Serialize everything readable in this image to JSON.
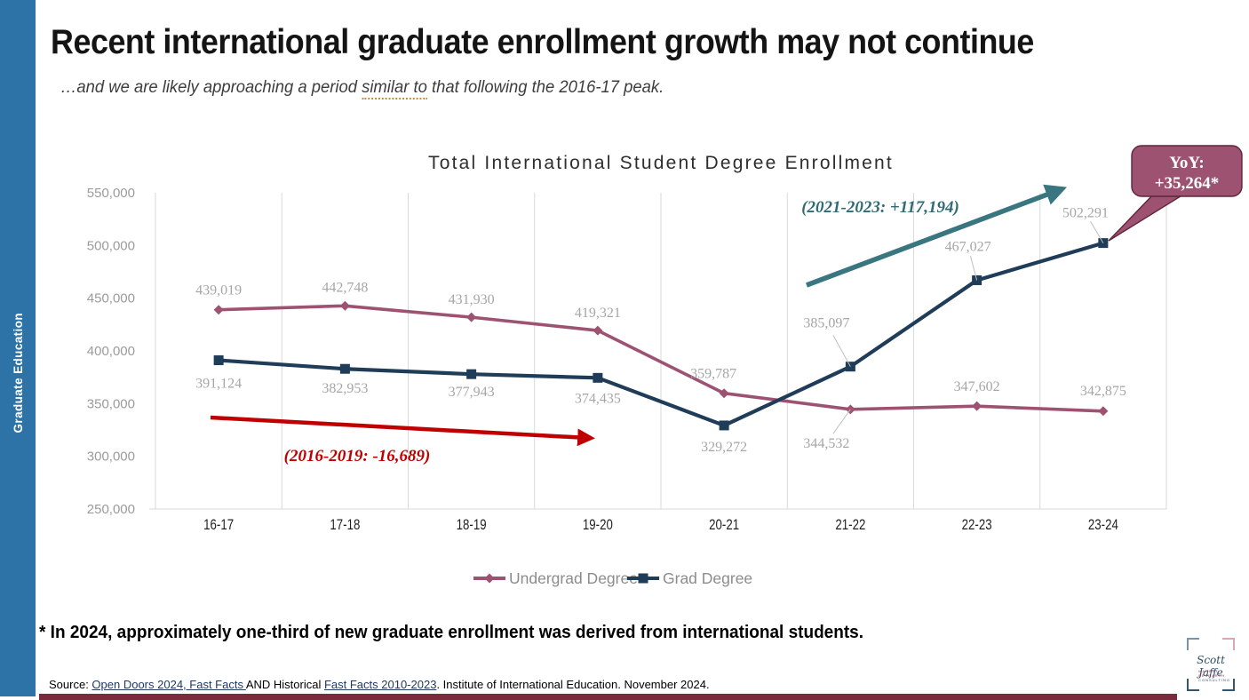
{
  "sidebar": {
    "label": "Graduate Education"
  },
  "header": {
    "title": "Recent international graduate enrollment growth may not continue",
    "subtitle_prefix": "…and we are likely approaching a period ",
    "subtitle_marked": "similar to",
    "subtitle_suffix": " that following the 2016-17 peak."
  },
  "chart_data": {
    "type": "line",
    "title": "Total International Student Degree Enrollment",
    "categories": [
      "16-17",
      "17-18",
      "18-19",
      "19-20",
      "20-21",
      "21-22",
      "22-23",
      "23-24"
    ],
    "series": [
      {
        "name": "Undergrad Degree",
        "color": "#9E5271",
        "marker": "diamond",
        "values": [
          439019,
          442748,
          431930,
          419321,
          359787,
          344532,
          347602,
          342875
        ],
        "label_offsets": [
          [
            0,
            -22,
            0
          ],
          [
            0,
            -21,
            0
          ],
          [
            0,
            -20,
            0
          ],
          [
            0,
            -20,
            0
          ],
          [
            -12,
            -22,
            0
          ],
          [
            -27,
            38,
            1
          ],
          [
            0,
            -22,
            0
          ],
          [
            0,
            -23,
            0
          ]
        ]
      },
      {
        "name": "Grad Degree",
        "color": "#1F3D58",
        "marker": "square",
        "values": [
          391124,
          382953,
          377943,
          374435,
          329272,
          385097,
          467027,
          502291
        ],
        "label_offsets": [
          [
            0,
            26,
            0
          ],
          [
            0,
            22,
            0
          ],
          [
            0,
            20,
            0
          ],
          [
            0,
            23,
            0
          ],
          [
            0,
            24,
            0
          ],
          [
            -27,
            -49,
            1
          ],
          [
            -10,
            -38,
            1
          ],
          [
            -20,
            -34,
            1
          ]
        ]
      }
    ],
    "ylim": [
      250000,
      550000
    ],
    "ytick_step": 50000,
    "ytick_format": "comma",
    "grid": "vertical-only",
    "legend_position": "bottom",
    "annotations": {
      "decline_arrow": {
        "text": "(2016-2019: -16,689)",
        "color": "#C00000"
      },
      "growth_arrow": {
        "text": "(2021-2023: +117,194)",
        "color": "#2F6B74",
        "arrow_color": "#3A7680"
      },
      "callout": {
        "line1": "YoY:",
        "line2": "+35,264*",
        "fill": "#9E5271",
        "stroke": "#5F2538",
        "text_color": "#ffffff"
      }
    },
    "label_color": "#A6A6A6",
    "grid_color": "#D9D9D9"
  },
  "footnote": "* In 2024, approximately one-third of new graduate enrollment was derived from international students.",
  "source": {
    "prefix": "Source: ",
    "link1": "Open Doors 2024, Fast Facts ",
    "middle": "AND Historical ",
    "link2": "Fast Facts 2010-2023",
    "suffix": ". Institute of International Education. November 2024."
  },
  "logo": {
    "signature": "Scott Jaffe",
    "tagline": [
      "MARKET",
      "RESEARCH",
      "CONSULTING"
    ]
  }
}
